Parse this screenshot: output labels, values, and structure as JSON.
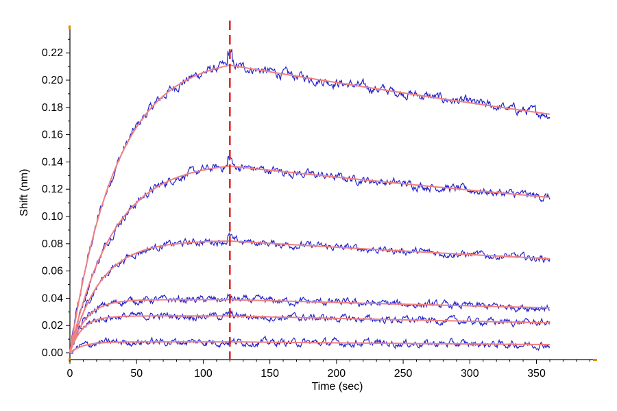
{
  "chart_data": {
    "type": "line",
    "title": "",
    "xlabel": "Time (sec)",
    "ylabel": "Shift (nm)",
    "xlim": [
      0,
      395
    ],
    "ylim": [
      -0.005,
      0.24
    ],
    "x_ticks": [
      0,
      50,
      100,
      150,
      200,
      250,
      300,
      350
    ],
    "y_ticks": [
      0.0,
      0.02,
      0.04,
      0.06,
      0.08,
      0.1,
      0.12,
      0.14,
      0.16,
      0.18,
      0.2,
      0.22
    ],
    "x_tick_labels": [
      "0",
      "50",
      "100",
      "150",
      "200",
      "250",
      "300",
      "350"
    ],
    "y_tick_labels": [
      "0.00",
      "0.02",
      "0.04",
      "0.06",
      "0.08",
      "0.10",
      "0.12",
      "0.14",
      "0.16",
      "0.18",
      "0.20",
      "0.22"
    ],
    "association_end": 120,
    "marker_line": {
      "x": 120,
      "color": "#dd2222",
      "style": "dashed"
    },
    "grid": false,
    "colors": {
      "raw": "#2222cc",
      "fit": "#f08080",
      "axis": "#000000",
      "axis_end": "#e08a00"
    },
    "curves": [
      {
        "peak": 0.211,
        "end": 0.175,
        "kon_shape": 0.02,
        "noise": 0.004
      },
      {
        "peak": 0.137,
        "end": 0.114,
        "kon_shape": 0.014,
        "noise": 0.0035
      },
      {
        "peak": 0.082,
        "end": 0.069,
        "kon_shape": 0.012,
        "noise": 0.003
      },
      {
        "peak": 0.039,
        "end": 0.033,
        "kon_shape": 0.011,
        "noise": 0.003
      },
      {
        "peak": 0.027,
        "end": 0.022,
        "kon_shape": 0.011,
        "noise": 0.003
      },
      {
        "peak": 0.008,
        "end": 0.006,
        "kon_shape": 0.01,
        "noise": 0.003
      }
    ],
    "x_max": 360
  }
}
